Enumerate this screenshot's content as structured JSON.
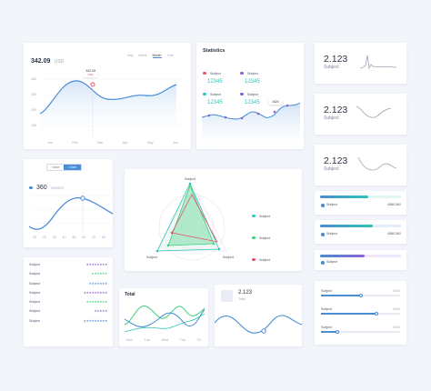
{
  "colors": {
    "blue": "#4a8cd6",
    "teal": "#2ec4b6",
    "green": "#3ccf7e",
    "purple": "#8a63d2",
    "red": "#e5526a",
    "light_blue": "#cfe2f7"
  },
  "price_card": {
    "value": "342.09",
    "unit": "USD",
    "tabs": [
      "Day",
      "Week",
      "Month",
      "Year"
    ],
    "active_tab": "Month",
    "tooltip_value": "342.09",
    "tooltip_sub": "USD",
    "y_ticks": [
      "400",
      "300",
      "200",
      "100"
    ],
    "x_ticks": [
      "Jan",
      "Feb",
      "Mar",
      "Apr",
      "May",
      "Jun"
    ]
  },
  "statistics": {
    "title": "Statistics",
    "items": [
      {
        "label": "Subject",
        "value": "12345",
        "color": "#e5526a"
      },
      {
        "label": "Subject",
        "value": "12345",
        "color": "#8a63d2"
      },
      {
        "label": "Subject",
        "value": "12345",
        "color": "#2ec4b6"
      },
      {
        "label": "Subject",
        "value": "12345",
        "color": "#8a63d2"
      }
    ],
    "tooltip": "1620"
  },
  "mini_stats": [
    {
      "value": "2.123",
      "label": "Subject"
    },
    {
      "value": "2.123",
      "label": "Subject"
    },
    {
      "value": "2.123",
      "label": "Subject"
    }
  ],
  "wave_card": {
    "toggle": [
      "Value",
      "Chart"
    ],
    "active_toggle": "Chart",
    "value": "360",
    "unit": "KM/GER",
    "x_ticks": [
      "10",
      "20",
      "30",
      "40",
      "50",
      "60",
      "70",
      "80"
    ]
  },
  "radar": {
    "labels": [
      "Subject",
      "Subject",
      "Subject"
    ],
    "legend": [
      {
        "label": "Subject",
        "color": "#2ec4b6"
      },
      {
        "label": "Subject",
        "color": "#3ccf7e"
      },
      {
        "label": "Subject",
        "color": "#e5526a"
      }
    ]
  },
  "progress_rows": [
    {
      "label": "Subject",
      "value": "4580.062",
      "fill": 0.6,
      "color": "#2ec4b6"
    },
    {
      "label": "Subject",
      "value": "4580.062",
      "fill": 0.65,
      "color": "#4a8cd6"
    },
    {
      "label": "Subject",
      "value": "",
      "fill": 0.55,
      "color": "#8a63d2"
    }
  ],
  "rating_list": {
    "rows": [
      {
        "label": "Subject",
        "stars": 8,
        "color": "#8a63d2"
      },
      {
        "label": "Subject",
        "stars": 6,
        "color": "#3ccf7e"
      },
      {
        "label": "Subject",
        "stars": 7,
        "color": "#4a8cd6"
      },
      {
        "label": "Subject",
        "stars": 9,
        "color": "#8a63d2"
      },
      {
        "label": "Subject",
        "stars": 8,
        "color": "#3ccf7e"
      },
      {
        "label": "Subject",
        "stars": 5,
        "color": "#8a63d2"
      },
      {
        "label": "Subject",
        "stars": 9,
        "color": "#4a8cd6"
      }
    ]
  },
  "total_card": {
    "title": "Total",
    "x_ticks": [
      "Mon",
      "Tue",
      "Wed",
      "Thu",
      "Fri"
    ]
  },
  "small_value": {
    "value": "2.123",
    "label": "Total"
  },
  "sliders": [
    {
      "label": "Subject",
      "value": "4000",
      "fill": 0.5
    },
    {
      "label": "Subject",
      "value": "4000",
      "fill": 0.7
    },
    {
      "label": "Subject",
      "value": "4000",
      "fill": 0.2
    }
  ]
}
